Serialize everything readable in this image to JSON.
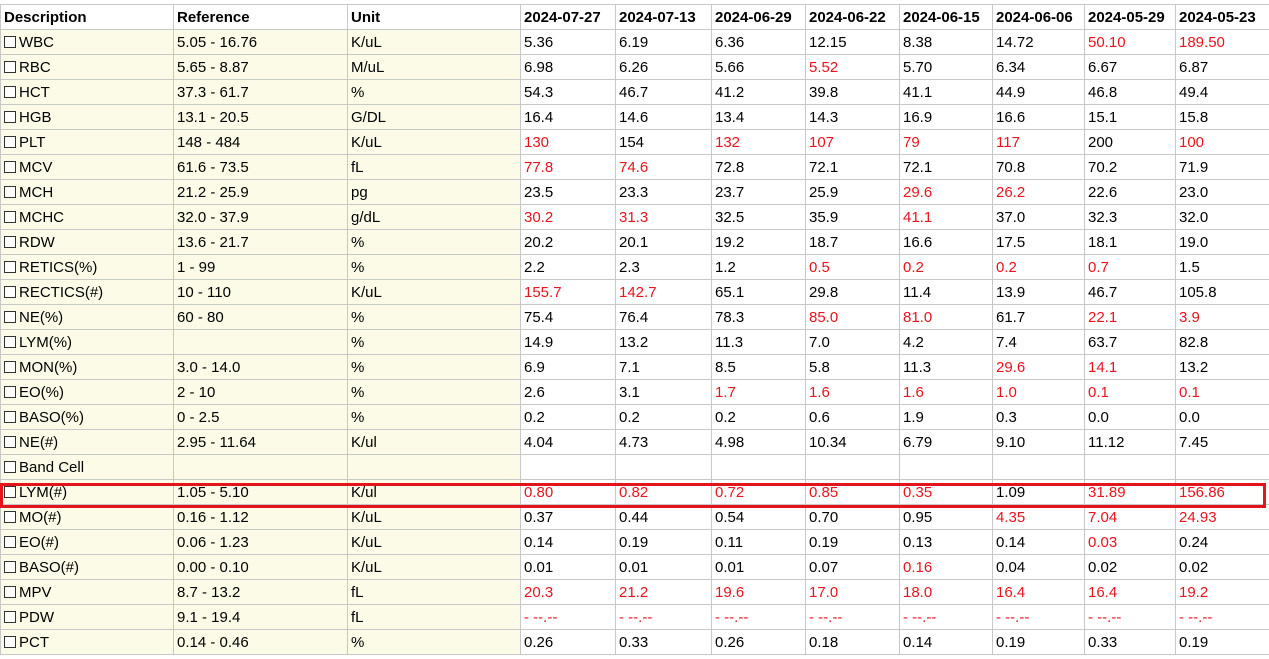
{
  "colors": {
    "abnormal": "#e8141e",
    "highlight": "#e3141b",
    "pinned_bg": "#fbfbe8"
  },
  "headers": {
    "description": "Description",
    "reference": "Reference",
    "unit": "Unit",
    "dates": [
      "2024-07-27",
      "2024-07-13",
      "2024-06-29",
      "2024-06-22",
      "2024-06-15",
      "2024-06-06",
      "2024-05-29",
      "2024-05-23"
    ]
  },
  "highlighted_row": "LYM(#)",
  "rows": [
    {
      "desc": "WBC",
      "ref": "5.05 - 16.76",
      "unit": "K/uL",
      "values": [
        "5.36",
        "6.19",
        "6.36",
        "12.15",
        "8.38",
        "14.72",
        "50.10",
        "189.50"
      ],
      "abn": [
        0,
        0,
        0,
        0,
        0,
        0,
        1,
        1
      ]
    },
    {
      "desc": "RBC",
      "ref": "5.65 - 8.87",
      "unit": "M/uL",
      "values": [
        "6.98",
        "6.26",
        "5.66",
        "5.52",
        "5.70",
        "6.34",
        "6.67",
        "6.87"
      ],
      "abn": [
        0,
        0,
        0,
        1,
        0,
        0,
        0,
        0
      ]
    },
    {
      "desc": "HCT",
      "ref": "37.3 - 61.7",
      "unit": "%",
      "values": [
        "54.3",
        "46.7",
        "41.2",
        "39.8",
        "41.1",
        "44.9",
        "46.8",
        "49.4"
      ],
      "abn": [
        0,
        0,
        0,
        0,
        0,
        0,
        0,
        0
      ]
    },
    {
      "desc": "HGB",
      "ref": "13.1 - 20.5",
      "unit": "G/DL",
      "values": [
        "16.4",
        "14.6",
        "13.4",
        "14.3",
        "16.9",
        "16.6",
        "15.1",
        "15.8"
      ],
      "abn": [
        0,
        0,
        0,
        0,
        0,
        0,
        0,
        0
      ]
    },
    {
      "desc": "PLT",
      "ref": "148 - 484",
      "unit": "K/uL",
      "values": [
        "130",
        "154",
        "132",
        "107",
        "79",
        "117",
        "200",
        "100"
      ],
      "abn": [
        1,
        0,
        1,
        1,
        1,
        1,
        0,
        1
      ]
    },
    {
      "desc": "MCV",
      "ref": "61.6 - 73.5",
      "unit": "fL",
      "values": [
        "77.8",
        "74.6",
        "72.8",
        "72.1",
        "72.1",
        "70.8",
        "70.2",
        "71.9"
      ],
      "abn": [
        1,
        1,
        0,
        0,
        0,
        0,
        0,
        0
      ]
    },
    {
      "desc": "MCH",
      "ref": "21.2 - 25.9",
      "unit": "pg",
      "values": [
        "23.5",
        "23.3",
        "23.7",
        "25.9",
        "29.6",
        "26.2",
        "22.6",
        "23.0"
      ],
      "abn": [
        0,
        0,
        0,
        0,
        1,
        1,
        0,
        0
      ]
    },
    {
      "desc": "MCHC",
      "ref": "32.0 - 37.9",
      "unit": "g/dL",
      "values": [
        "30.2",
        "31.3",
        "32.5",
        "35.9",
        "41.1",
        "37.0",
        "32.3",
        "32.0"
      ],
      "abn": [
        1,
        1,
        0,
        0,
        1,
        0,
        0,
        0
      ]
    },
    {
      "desc": "RDW",
      "ref": "13.6 - 21.7",
      "unit": "%",
      "values": [
        "20.2",
        "20.1",
        "19.2",
        "18.7",
        "16.6",
        "17.5",
        "18.1",
        "19.0"
      ],
      "abn": [
        0,
        0,
        0,
        0,
        0,
        0,
        0,
        0
      ]
    },
    {
      "desc": "RETICS(%)",
      "ref": "1 - 99",
      "unit": "%",
      "values": [
        "2.2",
        "2.3",
        "1.2",
        "0.5",
        "0.2",
        "0.2",
        "0.7",
        "1.5"
      ],
      "abn": [
        0,
        0,
        0,
        1,
        1,
        1,
        1,
        0
      ]
    },
    {
      "desc": "RECTICS(#)",
      "ref": "10 - 110",
      "unit": "K/uL",
      "values": [
        "155.7",
        "142.7",
        "65.1",
        "29.8",
        "11.4",
        "13.9",
        "46.7",
        "105.8"
      ],
      "abn": [
        1,
        1,
        0,
        0,
        0,
        0,
        0,
        0
      ]
    },
    {
      "desc": "NE(%)",
      "ref": "60 - 80",
      "unit": "%",
      "values": [
        "75.4",
        "76.4",
        "78.3",
        "85.0",
        "81.0",
        "61.7",
        "22.1",
        "3.9"
      ],
      "abn": [
        0,
        0,
        0,
        1,
        1,
        0,
        1,
        1
      ]
    },
    {
      "desc": "LYM(%)",
      "ref": "",
      "unit": "%",
      "values": [
        "14.9",
        "13.2",
        "11.3",
        "7.0",
        "4.2",
        "7.4",
        "63.7",
        "82.8"
      ],
      "abn": [
        0,
        0,
        0,
        0,
        0,
        0,
        0,
        0
      ]
    },
    {
      "desc": "MON(%)",
      "ref": "3.0 - 14.0",
      "unit": "%",
      "values": [
        "6.9",
        "7.1",
        "8.5",
        "5.8",
        "11.3",
        "29.6",
        "14.1",
        "13.2"
      ],
      "abn": [
        0,
        0,
        0,
        0,
        0,
        1,
        1,
        0
      ]
    },
    {
      "desc": "EO(%)",
      "ref": "2 - 10",
      "unit": "%",
      "values": [
        "2.6",
        "3.1",
        "1.7",
        "1.6",
        "1.6",
        "1.0",
        "0.1",
        "0.1"
      ],
      "abn": [
        0,
        0,
        1,
        1,
        1,
        1,
        1,
        1
      ]
    },
    {
      "desc": "BASO(%)",
      "ref": "0 - 2.5",
      "unit": "%",
      "values": [
        "0.2",
        "0.2",
        "0.2",
        "0.6",
        "1.9",
        "0.3",
        "0.0",
        "0.0"
      ],
      "abn": [
        0,
        0,
        0,
        0,
        0,
        0,
        0,
        0
      ]
    },
    {
      "desc": "NE(#)",
      "ref": "2.95 - 11.64",
      "unit": "K/ul",
      "values": [
        "4.04",
        "4.73",
        "4.98",
        "10.34",
        "6.79",
        "9.10",
        "11.12",
        "7.45"
      ],
      "abn": [
        0,
        0,
        0,
        0,
        0,
        0,
        0,
        0
      ]
    },
    {
      "desc": "Band Cell",
      "ref": "",
      "unit": "",
      "values": [
        "",
        "",
        "",
        "",
        "",
        "",
        "",
        ""
      ],
      "abn": [
        0,
        0,
        0,
        0,
        0,
        0,
        0,
        0
      ]
    },
    {
      "desc": "LYM(#)",
      "ref": "1.05 - 5.10",
      "unit": "K/ul",
      "values": [
        "0.80",
        "0.82",
        "0.72",
        "0.85",
        "0.35",
        "1.09",
        "31.89",
        "156.86"
      ],
      "abn": [
        1,
        1,
        1,
        1,
        1,
        0,
        1,
        1
      ]
    },
    {
      "desc": "MO(#)",
      "ref": "0.16 - 1.12",
      "unit": "K/uL",
      "values": [
        "0.37",
        "0.44",
        "0.54",
        "0.70",
        "0.95",
        "4.35",
        "7.04",
        "24.93"
      ],
      "abn": [
        0,
        0,
        0,
        0,
        0,
        1,
        1,
        1
      ]
    },
    {
      "desc": "EO(#)",
      "ref": "0.06 - 1.23",
      "unit": "K/uL",
      "values": [
        "0.14",
        "0.19",
        "0.11",
        "0.19",
        "0.13",
        "0.14",
        "0.03",
        "0.24"
      ],
      "abn": [
        0,
        0,
        0,
        0,
        0,
        0,
        1,
        0
      ]
    },
    {
      "desc": "BASO(#)",
      "ref": "0.00 - 0.10",
      "unit": "K/uL",
      "values": [
        "0.01",
        "0.01",
        "0.01",
        "0.07",
        "0.16",
        "0.04",
        "0.02",
        "0.02"
      ],
      "abn": [
        0,
        0,
        0,
        0,
        1,
        0,
        0,
        0
      ]
    },
    {
      "desc": "MPV",
      "ref": "8.7 - 13.2",
      "unit": "fL",
      "values": [
        "20.3",
        "21.2",
        "19.6",
        "17.0",
        "18.0",
        "16.4",
        "16.4",
        "19.2"
      ],
      "abn": [
        1,
        1,
        1,
        1,
        1,
        1,
        1,
        1
      ]
    },
    {
      "desc": "PDW",
      "ref": "9.1 - 19.4",
      "unit": "fL",
      "values": [
        "- --.--",
        "- --.--",
        "- --.--",
        "- --.--",
        "- --.--",
        "- --.--",
        "- --.--",
        "- --.--"
      ],
      "abn": [
        1,
        1,
        1,
        1,
        1,
        1,
        1,
        1
      ]
    },
    {
      "desc": "PCT",
      "ref": "0.14 - 0.46",
      "unit": "%",
      "values": [
        "0.26",
        "0.33",
        "0.26",
        "0.18",
        "0.14",
        "0.19",
        "0.33",
        "0.19"
      ],
      "abn": [
        0,
        0,
        0,
        0,
        0,
        0,
        0,
        0
      ]
    }
  ]
}
